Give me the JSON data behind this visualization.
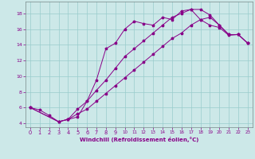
{
  "xlabel": "Windchill (Refroidissement éolien,°C)",
  "bg_color": "#cce8e8",
  "grid_color": "#99cccc",
  "line_color": "#880088",
  "xlim": [
    -0.5,
    23.5
  ],
  "ylim": [
    3.5,
    19.5
  ],
  "yticks": [
    4,
    6,
    8,
    10,
    12,
    14,
    16,
    18
  ],
  "xticks": [
    0,
    1,
    2,
    3,
    4,
    5,
    6,
    7,
    8,
    9,
    10,
    11,
    12,
    13,
    14,
    15,
    16,
    17,
    18,
    19,
    20,
    21,
    22,
    23
  ],
  "line1_x": [
    0,
    1,
    2,
    3,
    4,
    5,
    6,
    7,
    8,
    9,
    10,
    11,
    12,
    13,
    14,
    15,
    16,
    17,
    18,
    19,
    20,
    21,
    22,
    23
  ],
  "line1_y": [
    6.0,
    5.7,
    5.0,
    4.2,
    4.5,
    4.8,
    6.8,
    9.5,
    13.5,
    14.2,
    16.0,
    17.0,
    16.7,
    16.5,
    17.5,
    17.2,
    18.3,
    18.5,
    17.2,
    16.5,
    16.2,
    15.2,
    15.3,
    14.2
  ],
  "line2_x": [
    0,
    3,
    4,
    5,
    6,
    7,
    8,
    9,
    10,
    11,
    12,
    13,
    14,
    15,
    16,
    17,
    18,
    19,
    20,
    21,
    22,
    23
  ],
  "line2_y": [
    6.0,
    4.2,
    4.5,
    5.8,
    6.8,
    8.2,
    9.5,
    11.0,
    12.5,
    13.5,
    14.5,
    15.5,
    16.5,
    17.5,
    18.0,
    18.5,
    18.5,
    17.8,
    16.5,
    15.3,
    15.3,
    14.2
  ],
  "line3_x": [
    0,
    3,
    4,
    5,
    6,
    7,
    8,
    9,
    10,
    11,
    12,
    13,
    14,
    15,
    16,
    17,
    18,
    19,
    20,
    21,
    22,
    23
  ],
  "line3_y": [
    6.0,
    4.2,
    4.5,
    5.2,
    5.8,
    6.8,
    7.8,
    8.8,
    9.8,
    10.8,
    11.8,
    12.8,
    13.8,
    14.8,
    15.5,
    16.5,
    17.2,
    17.5,
    16.5,
    15.3,
    15.3,
    14.2
  ]
}
